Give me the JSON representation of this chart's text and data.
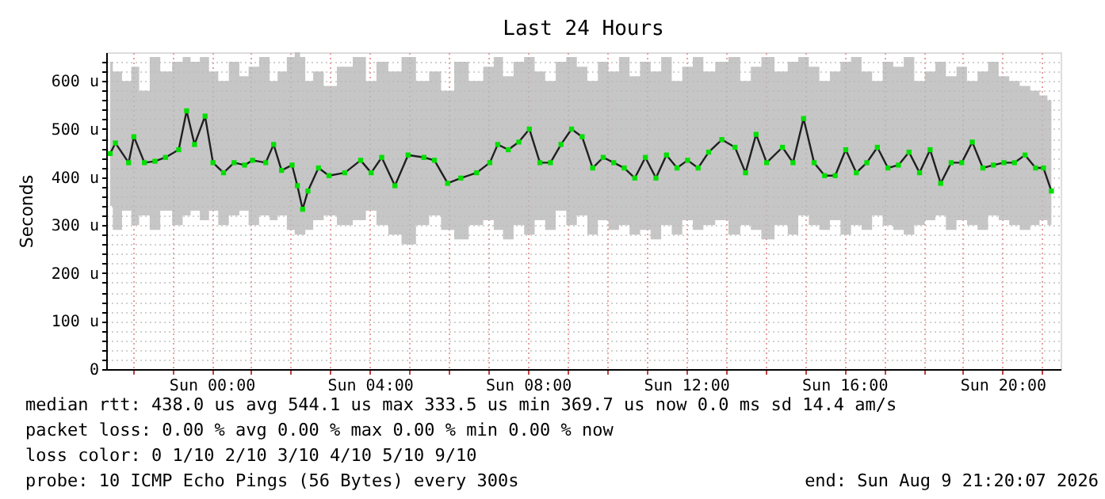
{
  "chart_data": {
    "type": "line",
    "title": "Last 24 Hours",
    "ylabel": "Seconds",
    "xlim": [
      "2026-08-08T21:20",
      "2026-08-09T21:28"
    ],
    "xticks": [
      {
        "value": "2026-08-08T22:00",
        "label": null
      },
      {
        "value": "2026-08-08T23:00",
        "label": null
      },
      {
        "value": "2026-08-09T00:00",
        "label": "Sun 00:00"
      },
      {
        "value": "2026-08-09T01:00",
        "label": null
      },
      {
        "value": "2026-08-09T02:00",
        "label": null
      },
      {
        "value": "2026-08-09T03:00",
        "label": null
      },
      {
        "value": "2026-08-09T04:00",
        "label": "Sun 04:00"
      },
      {
        "value": "2026-08-09T05:00",
        "label": null
      },
      {
        "value": "2026-08-09T06:00",
        "label": null
      },
      {
        "value": "2026-08-09T07:00",
        "label": null
      },
      {
        "value": "2026-08-09T08:00",
        "label": "Sun 08:00"
      },
      {
        "value": "2026-08-09T09:00",
        "label": null
      },
      {
        "value": "2026-08-09T10:00",
        "label": null
      },
      {
        "value": "2026-08-09T11:00",
        "label": null
      },
      {
        "value": "2026-08-09T12:00",
        "label": "Sun 12:00"
      },
      {
        "value": "2026-08-09T13:00",
        "label": null
      },
      {
        "value": "2026-08-09T14:00",
        "label": null
      },
      {
        "value": "2026-08-09T15:00",
        "label": null
      },
      {
        "value": "2026-08-09T16:00",
        "label": "Sun 16:00"
      },
      {
        "value": "2026-08-09T17:00",
        "label": null
      },
      {
        "value": "2026-08-09T18:00",
        "label": null
      },
      {
        "value": "2026-08-09T19:00",
        "label": null
      },
      {
        "value": "2026-08-09T20:00",
        "label": "Sun 20:00"
      },
      {
        "value": "2026-08-09T21:00",
        "label": null
      }
    ],
    "ylim": [
      0,
      660
    ],
    "yticks": [
      0,
      {
        "value": 20,
        "label": null
      },
      {
        "value": 40,
        "label": null
      },
      {
        "value": 60,
        "label": null
      },
      {
        "value": 80,
        "label": null
      },
      {
        "value": 100,
        "label": "100 u"
      },
      {
        "value": 120,
        "label": null
      },
      {
        "value": 140,
        "label": null
      },
      {
        "value": 160,
        "label": null
      },
      {
        "value": 180,
        "label": null
      },
      {
        "value": 200,
        "label": "200 u"
      },
      {
        "value": 220,
        "label": null
      },
      {
        "value": 240,
        "label": null
      },
      {
        "value": 260,
        "label": null
      },
      {
        "value": 280,
        "label": null
      },
      {
        "value": 300,
        "label": "300 u"
      },
      {
        "value": 320,
        "label": null
      },
      {
        "value": 340,
        "label": null
      },
      {
        "value": 360,
        "label": null
      },
      {
        "value": 380,
        "label": null
      },
      {
        "value": 400,
        "label": "400 u"
      },
      {
        "value": 420,
        "label": null
      },
      {
        "value": 440,
        "label": null
      },
      {
        "value": 460,
        "label": null
      },
      {
        "value": 480,
        "label": null
      },
      {
        "value": 500,
        "label": "500 u"
      },
      {
        "value": 520,
        "label": null
      },
      {
        "value": 540,
        "label": null
      },
      {
        "value": 560,
        "label": null
      },
      {
        "value": 580,
        "label": null
      },
      {
        "value": 600,
        "label": "600 u"
      },
      {
        "value": 620,
        "label": null
      },
      {
        "value": 640,
        "label": null
      }
    ],
    "grid": true,
    "legend": false,
    "marker": "square",
    "line_style": "solid",
    "x": [
      "2026-08-08T21:26",
      "2026-08-08T21:34",
      "2026-08-08T21:54",
      "2026-08-08T22:02",
      "2026-08-08T22:18",
      "2026-08-08T22:34",
      "2026-08-08T22:50",
      "2026-08-08T23:10",
      "2026-08-08T23:22",
      "2026-08-08T23:34",
      "2026-08-08T23:50",
      "2026-08-09T00:02",
      "2026-08-09T00:18",
      "2026-08-09T00:34",
      "2026-08-09T00:50",
      "2026-08-09T01:02",
      "2026-08-09T01:22",
      "2026-08-09T01:34",
      "2026-08-09T01:46",
      "2026-08-09T02:02",
      "2026-08-09T02:10",
      "2026-08-09T02:18",
      "2026-08-09T02:26",
      "2026-08-09T02:42",
      "2026-08-09T02:58",
      "2026-08-09T03:22",
      "2026-08-09T03:46",
      "2026-08-09T04:02",
      "2026-08-09T04:18",
      "2026-08-09T04:38",
      "2026-08-09T04:58",
      "2026-08-09T05:22",
      "2026-08-09T05:38",
      "2026-08-09T05:58",
      "2026-08-09T06:18",
      "2026-08-09T06:42",
      "2026-08-09T07:02",
      "2026-08-09T07:14",
      "2026-08-09T07:30",
      "2026-08-09T07:46",
      "2026-08-09T08:02",
      "2026-08-09T08:18",
      "2026-08-09T08:34",
      "2026-08-09T08:50",
      "2026-08-09T09:06",
      "2026-08-09T09:22",
      "2026-08-09T09:38",
      "2026-08-09T09:54",
      "2026-08-09T10:10",
      "2026-08-09T10:26",
      "2026-08-09T10:42",
      "2026-08-09T10:58",
      "2026-08-09T11:14",
      "2026-08-09T11:30",
      "2026-08-09T11:46",
      "2026-08-09T12:02",
      "2026-08-09T12:18",
      "2026-08-09T12:34",
      "2026-08-09T12:54",
      "2026-08-09T13:14",
      "2026-08-09T13:30",
      "2026-08-09T13:46",
      "2026-08-09T14:02",
      "2026-08-09T14:26",
      "2026-08-09T14:42",
      "2026-08-09T14:58",
      "2026-08-09T15:14",
      "2026-08-09T15:30",
      "2026-08-09T15:46",
      "2026-08-09T16:02",
      "2026-08-09T16:18",
      "2026-08-09T16:34",
      "2026-08-09T16:50",
      "2026-08-09T17:06",
      "2026-08-09T17:22",
      "2026-08-09T17:38",
      "2026-08-09T17:54",
      "2026-08-09T18:10",
      "2026-08-09T18:26",
      "2026-08-09T18:42",
      "2026-08-09T18:58",
      "2026-08-09T19:14",
      "2026-08-09T19:30",
      "2026-08-09T19:46",
      "2026-08-09T20:02",
      "2026-08-09T20:18",
      "2026-08-09T20:34",
      "2026-08-09T20:50",
      "2026-08-09T21:02",
      "2026-08-09T21:14"
    ],
    "series": [
      {
        "color": "#00e000",
        "values": [
          449,
          471,
          430,
          484,
          430,
          433,
          441,
          457,
          538,
          468,
          527,
          430,
          409,
          430,
          425,
          435,
          430,
          468,
          414,
          425,
          382,
          333,
          371,
          419,
          403,
          409,
          435,
          409,
          441,
          382,
          446,
          441,
          435,
          387,
          398,
          409,
          430,
          468,
          457,
          473,
          500,
          430,
          430,
          468,
          500,
          484,
          419,
          441,
          430,
          419,
          398,
          441,
          398,
          446,
          419,
          435,
          419,
          452,
          478,
          462,
          409,
          489,
          430,
          462,
          430,
          522,
          430,
          403,
          403,
          457,
          409,
          430,
          462,
          419,
          425,
          452,
          409,
          457,
          387,
          430,
          430,
          473,
          419,
          425,
          430,
          430,
          446,
          419,
          419,
          371
        ],
        "lower": [
          340,
          290,
          330,
          300,
          320,
          290,
          330,
          300,
          320,
          330,
          310,
          330,
          300,
          320,
          330,
          300,
          320,
          310,
          320,
          290,
          280,
          280,
          290,
          310,
          320,
          300,
          310,
          330,
          300,
          280,
          260,
          300,
          320,
          290,
          270,
          300,
          310,
          290,
          270,
          300,
          280,
          310,
          290,
          330,
          300,
          320,
          280,
          310,
          290,
          300,
          280,
          290,
          270,
          300,
          280,
          310,
          290,
          300,
          310,
          280,
          300,
          290,
          270,
          300,
          280,
          320,
          300,
          290,
          310,
          280,
          300,
          290,
          320,
          300,
          290,
          280,
          300,
          310,
          320,
          290,
          310,
          300,
          290,
          320,
          310,
          300,
          290,
          300,
          310,
          300
        ],
        "upper": [
          640,
          620,
          600,
          630,
          580,
          650,
          620,
          640,
          650,
          640,
          650,
          620,
          600,
          640,
          610,
          630,
          650,
          600,
          620,
          650,
          660,
          650,
          600,
          620,
          590,
          630,
          650,
          600,
          640,
          620,
          650,
          600,
          620,
          580,
          640,
          600,
          630,
          650,
          610,
          640,
          650,
          620,
          600,
          640,
          650,
          630,
          600,
          640,
          620,
          650,
          610,
          640,
          620,
          650,
          600,
          630,
          650,
          620,
          640,
          650,
          600,
          630,
          650,
          620,
          640,
          650,
          630,
          600,
          620,
          640,
          650,
          620,
          600,
          640,
          630,
          650,
          600,
          620,
          640,
          610,
          630,
          600,
          620,
          640,
          610,
          600,
          590,
          580,
          570,
          560
        ]
      }
    ],
    "annotations": [
      "median rtt:  438.0 us avg  544.1 us max  333.5 us min  369.7 us now  0.0 ms sd  14.4  am/s",
      "packet loss: 0.00 % avg  0.00 % max  0.00 % min  0.00 % now",
      "loss color:  0  1/10  2/10  3/10  4/10  5/10  9/10",
      "probe:       10 ICMP Echo Pings (56 Bytes) every 300s",
      "end: Sun Aug  9 21:20:07 2026"
    ]
  }
}
